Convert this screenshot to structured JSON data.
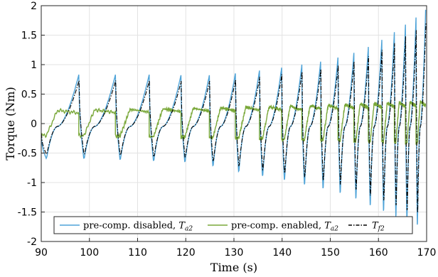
{
  "chart_data": {
    "type": "line",
    "xlabel": "Time (s)",
    "ylabel": "Torque (Nm)",
    "xlim": [
      90,
      170
    ],
    "ylim": [
      -2,
      2
    ],
    "x_ticks": [
      90,
      100,
      110,
      120,
      130,
      140,
      150,
      160,
      170
    ],
    "y_ticks": [
      -2,
      -1.5,
      -1,
      -0.5,
      0,
      0.5,
      1,
      1.5,
      2
    ],
    "y_tick_labels": [
      "-2",
      "-1.5",
      "-1",
      "-0.5",
      "0",
      "0.5",
      "1",
      "1.5",
      "2"
    ],
    "grid": true,
    "legend_position": "bottom",
    "series": [
      {
        "name": "pre-comp. disabled, T_a2",
        "legend_main": "pre-comp. disabled, ",
        "legend_var": "T",
        "legend_sub": "a2",
        "color": "#4ea3d8",
        "dash": "solid",
        "summary": "Triangular torque swings; peak ~0.8 Nm at 90–115 s, amplitude grows to ~1.9 Nm by 170 s; frequency increases with time"
      },
      {
        "name": "pre-comp. enabled, T_a2",
        "legend_main": "pre-comp. enabled, ",
        "legend_var": "T",
        "legend_sub": "a2",
        "color": "#7aa83a",
        "dash": "solid",
        "summary": "Small torque oscillation ~±0.25 Nm around 0; amplitude grows slightly to ~±0.4 Nm near 170 s"
      },
      {
        "name": "T_f2",
        "legend_main": "",
        "legend_var": "T",
        "legend_sub": "f2",
        "color": "#000000",
        "dash": "dashdot",
        "summary": "Reference friction torque closely following the pre-comp. disabled curve with slightly lower peaks"
      }
    ],
    "cycle_peaks": [
      {
        "t_start": 90.0,
        "t_peak": 97.8,
        "peak": 0.83,
        "trough": -0.6
      },
      {
        "t_start": 97.8,
        "t_peak": 105.4,
        "peak": 0.83,
        "trough": -0.62
      },
      {
        "t_start": 105.4,
        "t_peak": 112.4,
        "peak": 0.83,
        "trough": -0.64
      },
      {
        "t_start": 112.4,
        "t_peak": 119.0,
        "peak": 0.82,
        "trough": -0.66
      },
      {
        "t_start": 119.0,
        "t_peak": 124.9,
        "peak": 0.82,
        "trough": -0.68
      },
      {
        "t_start": 124.9,
        "t_peak": 130.3,
        "peak": 0.85,
        "trough": -0.75
      },
      {
        "t_start": 130.3,
        "t_peak": 135.3,
        "peak": 0.9,
        "trough": -0.85
      },
      {
        "t_start": 135.3,
        "t_peak": 139.9,
        "peak": 0.95,
        "trough": -0.93
      },
      {
        "t_start": 139.9,
        "t_peak": 144.1,
        "peak": 1.0,
        "trough": -1.0
      },
      {
        "t_start": 144.1,
        "t_peak": 148.0,
        "peak": 1.05,
        "trough": -1.08
      },
      {
        "t_start": 148.0,
        "t_peak": 151.6,
        "peak": 1.12,
        "trough": -1.15
      },
      {
        "t_start": 151.6,
        "t_peak": 154.9,
        "peak": 1.2,
        "trough": -1.23
      },
      {
        "t_start": 154.9,
        "t_peak": 157.9,
        "peak": 1.3,
        "trough": -1.33
      },
      {
        "t_start": 157.9,
        "t_peak": 160.7,
        "peak": 1.42,
        "trough": -1.45
      },
      {
        "t_start": 160.7,
        "t_peak": 163.3,
        "peak": 1.55,
        "trough": -1.55
      },
      {
        "t_start": 163.3,
        "t_peak": 165.6,
        "peak": 1.68,
        "trough": -1.65
      },
      {
        "t_start": 165.6,
        "t_peak": 167.8,
        "peak": 1.8,
        "trough": -1.75
      },
      {
        "t_start": 167.8,
        "t_peak": 169.8,
        "peak": 1.93,
        "trough": -1.8
      }
    ]
  }
}
